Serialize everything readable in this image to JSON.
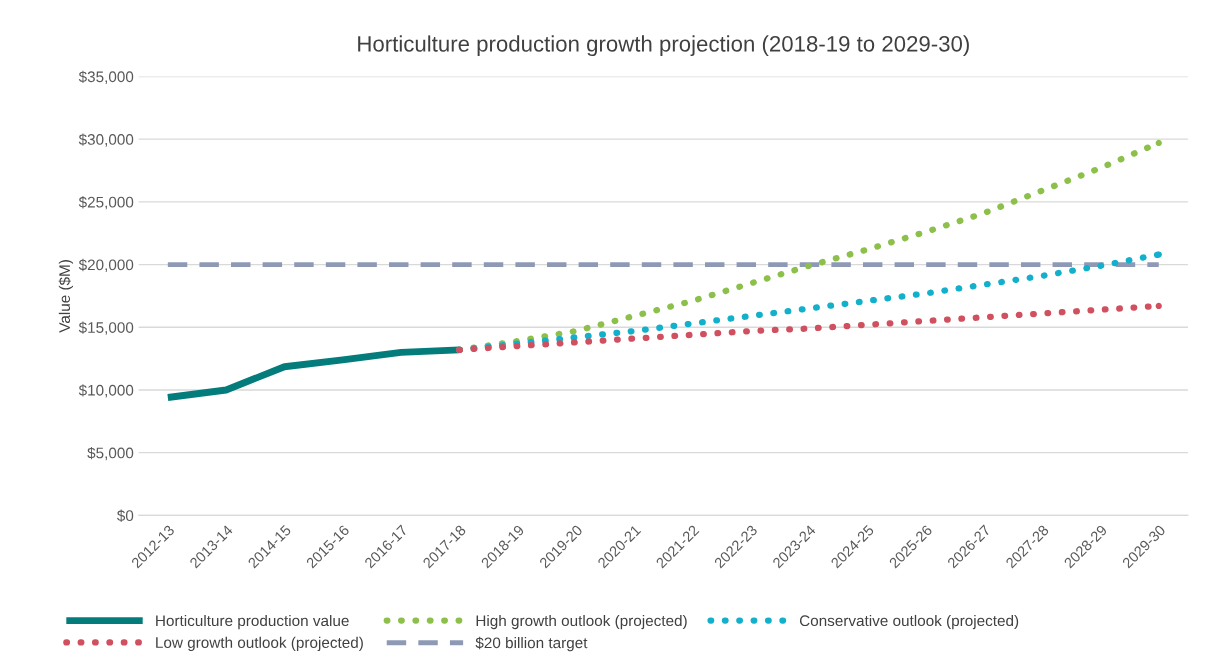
{
  "chart_data": {
    "type": "line",
    "title": "Horticulture production growth projection (2018-19 to 2029-30)",
    "ylabel": "Value ($M)",
    "categories": [
      "2012-13",
      "2013-14",
      "2014-15",
      "2015-16",
      "2016-17",
      "2017-18",
      "2018-19",
      "2019-20",
      "2020-21",
      "2021-22",
      "2022-23",
      "2023-24",
      "2024-25",
      "2025-26",
      "2026-27",
      "2027-28",
      "2028-29",
      "2029-30"
    ],
    "series": [
      {
        "name": "Horticulture production value",
        "color": "#047c7c",
        "line_style": "solid",
        "values": [
          9400,
          10000,
          11850,
          12400,
          13000,
          13200,
          null,
          null,
          null,
          null,
          null,
          null,
          null,
          null,
          null,
          null,
          null,
          null
        ]
      },
      {
        "name": "High growth outlook (projected)",
        "color": "#8cc04b",
        "line_style": "dotted",
        "values": [
          null,
          null,
          null,
          null,
          null,
          13200,
          13900,
          14700,
          15900,
          17100,
          18500,
          19900,
          21200,
          22600,
          24100,
          25900,
          27700,
          29700
        ]
      },
      {
        "name": "Conservative outlook (projected)",
        "color": "#13b0cc",
        "line_style": "dotted",
        "values": [
          null,
          null,
          null,
          null,
          null,
          13200,
          13700,
          14200,
          14700,
          15300,
          15900,
          16500,
          17100,
          17700,
          18400,
          19100,
          19900,
          20800
        ]
      },
      {
        "name": "Low growth outlook (projected)",
        "color": "#d0505f",
        "line_style": "dotted",
        "values": [
          null,
          null,
          null,
          null,
          null,
          13200,
          13500,
          13800,
          14100,
          14400,
          14700,
          14900,
          15200,
          15500,
          15800,
          16100,
          16400,
          16700
        ]
      }
    ],
    "ref_lines": [
      {
        "axis": "y",
        "value": 20000,
        "label": "$20 billion target",
        "color": "#8e9ab5",
        "line_style": "dashed"
      }
    ],
    "ylim": [
      0,
      35000
    ],
    "yticks": [
      {
        "value": 0,
        "label": "$0"
      },
      {
        "value": 5000,
        "label": "$5,000"
      },
      {
        "value": 10000,
        "label": "$10,000"
      },
      {
        "value": 15000,
        "label": "$15,000"
      },
      {
        "value": 20000,
        "label": "$20,000"
      },
      {
        "value": 25000,
        "label": "$25,000"
      },
      {
        "value": 30000,
        "label": "$30,000"
      },
      {
        "value": 35000,
        "label": "$35,000"
      }
    ],
    "grid": "y",
    "legend": "bottom",
    "marker": "none"
  }
}
